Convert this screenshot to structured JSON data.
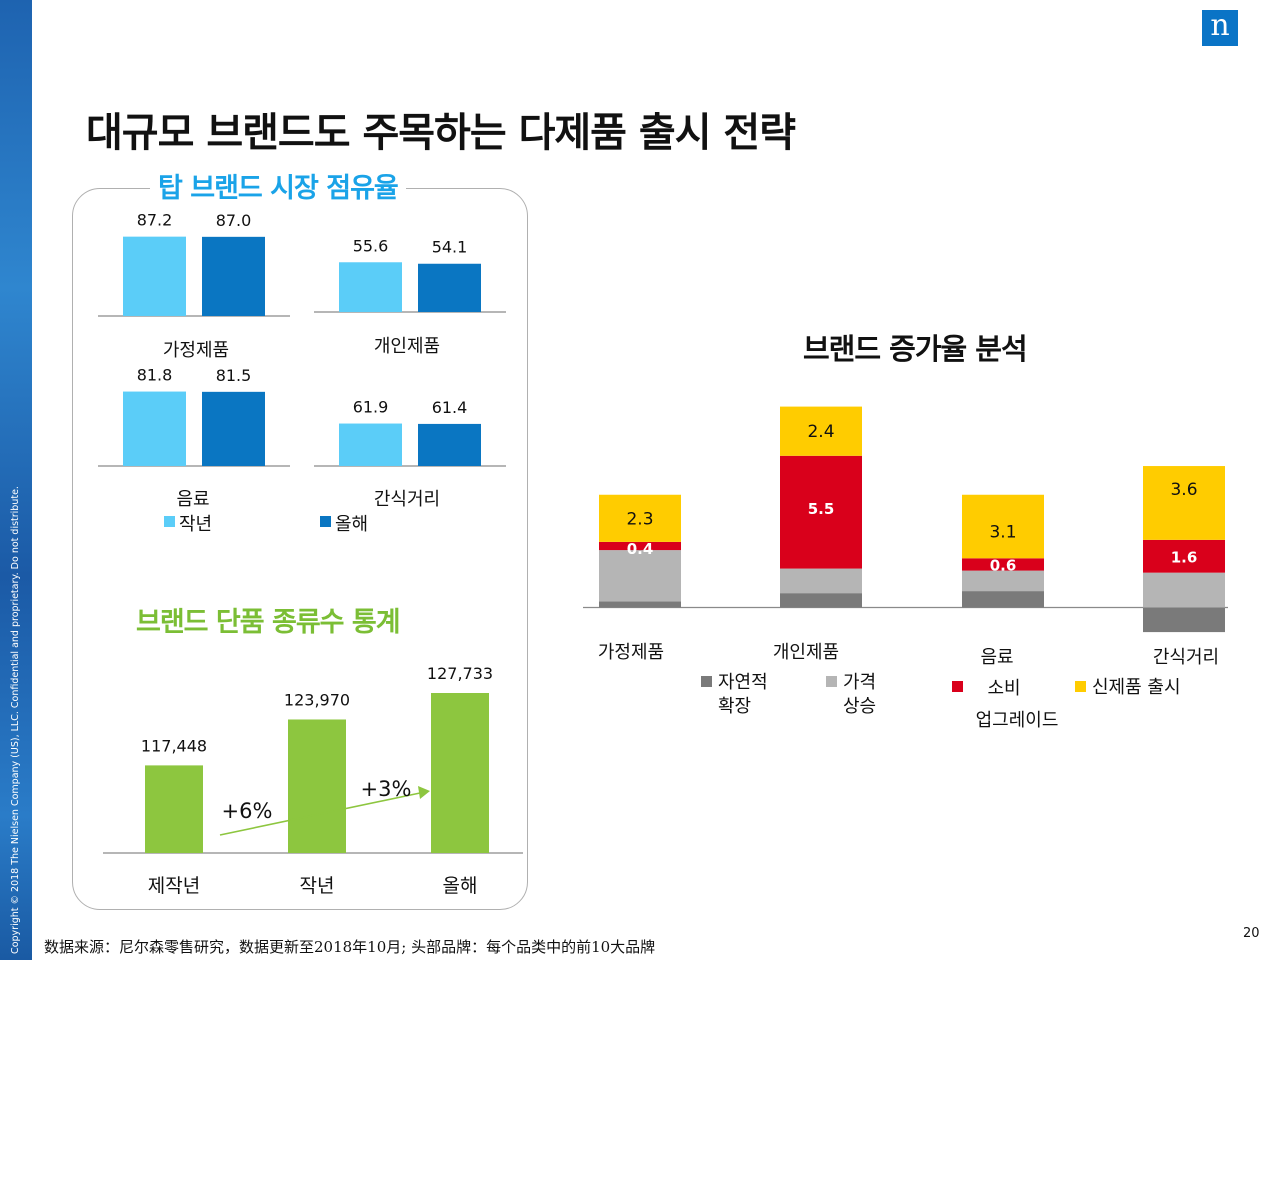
{
  "copyright": "Copyright © 2018 The Nielsen Company (US), LLC. Confidential and proprietary. Do not distribute.",
  "logo": "n",
  "title": "대규모 브랜드도 주목하는 다제품 출시 전략",
  "source_note": "数据来源：尼尔森零售研究，数据更新至2018年10月; 头部品牌：每个品类中的前10大品牌",
  "page_number": "20",
  "colors": {
    "last_year": "#5bcdf8",
    "this_year": "#0a76c2",
    "count_bar": "#8dc63f",
    "natural": "#7a7a7a",
    "price": "#b5b5b5",
    "upgrade": "#d9001b",
    "new_product": "#ffcc00"
  },
  "chart_data": [
    {
      "type": "bar",
      "title": "탑 브랜드 시장 점유율",
      "panels": [
        {
          "category": "가정제품",
          "values": [
            87.2,
            87.0
          ]
        },
        {
          "category": "개인제품",
          "values": [
            55.6,
            54.1
          ]
        },
        {
          "category": "음료",
          "values": [
            81.8,
            81.5
          ]
        },
        {
          "category": "간식거리",
          "values": [
            61.9,
            61.4
          ]
        }
      ],
      "series": [
        {
          "name": "작년",
          "values": [
            87.2,
            55.6,
            81.8,
            61.9
          ]
        },
        {
          "name": "올해",
          "values": [
            87.0,
            54.1,
            81.5,
            61.4
          ]
        }
      ]
    },
    {
      "type": "bar",
      "title": "브랜드 단품 종류수 통계",
      "categories": [
        "제작년",
        "작년",
        "올해"
      ],
      "values": [
        117448,
        123970,
        127733
      ],
      "labels": [
        "117,448",
        "123,970",
        "127,733"
      ],
      "annotations": [
        "+6%",
        "+3%"
      ]
    },
    {
      "type": "bar",
      "stacked": true,
      "title": "브랜드 증가율 분석",
      "categories": [
        "가정제품",
        "개인제품",
        "음료",
        "간식거리"
      ],
      "series": [
        {
          "name": "자연적 확장",
          "legend": [
            "자연적",
            "확장"
          ],
          "values": [
            0.3,
            0.7,
            0.8,
            -1.2
          ]
        },
        {
          "name": "가격 상승",
          "legend": [
            "가격",
            "상승"
          ],
          "values": [
            2.5,
            1.2,
            1.0,
            1.7
          ]
        },
        {
          "name": "소비 업그레이드",
          "legend": [
            "소비",
            "업그레이드"
          ],
          "values": [
            0.4,
            5.5,
            0.6,
            1.6
          ]
        },
        {
          "name": "신제품 출시",
          "legend": [
            "신제품 출시"
          ],
          "values": [
            2.3,
            2.4,
            3.1,
            3.6
          ]
        }
      ],
      "labels": {
        "upgrade": [
          "0.4",
          "5.5",
          "0.6",
          "1.6"
        ],
        "new_product": [
          "2.3",
          "2.4",
          "3.1",
          "3.6"
        ]
      }
    }
  ]
}
